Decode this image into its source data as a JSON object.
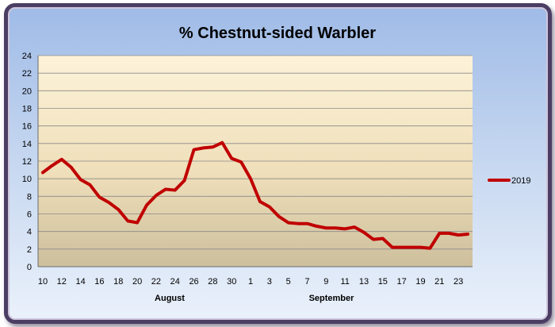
{
  "chart_data": {
    "type": "line",
    "title": "% Chestnut-sided Warbler",
    "xlabel": "",
    "ylabel": "",
    "ylim": [
      0,
      24
    ],
    "y_ticks": [
      "0",
      "2",
      "4",
      "6",
      "8",
      "10",
      "12",
      "14",
      "16",
      "18",
      "20",
      "22",
      "24"
    ],
    "x_tick_labels": [
      "10",
      "12",
      "14",
      "16",
      "18",
      "20",
      "22",
      "24",
      "26",
      "28",
      "30",
      "1",
      "3",
      "5",
      "7",
      "9",
      "11",
      "13",
      "15",
      "17",
      "19",
      "21",
      "23"
    ],
    "month_labels": [
      "August",
      "September"
    ],
    "grid": true,
    "legend_position": "right",
    "x": [
      "Aug 10",
      "Aug 11",
      "Aug 12",
      "Aug 13",
      "Aug 14",
      "Aug 15",
      "Aug 16",
      "Aug 17",
      "Aug 18",
      "Aug 19",
      "Aug 20",
      "Aug 21",
      "Aug 22",
      "Aug 23",
      "Aug 24",
      "Aug 25",
      "Aug 26",
      "Aug 27",
      "Aug 28",
      "Aug 29",
      "Aug 30",
      "Aug 31",
      "Sep 1",
      "Sep 2",
      "Sep 3",
      "Sep 4",
      "Sep 5",
      "Sep 6",
      "Sep 7",
      "Sep 8",
      "Sep 9",
      "Sep 10",
      "Sep 11",
      "Sep 12",
      "Sep 13",
      "Sep 14",
      "Sep 15",
      "Sep 16",
      "Sep 17",
      "Sep 18",
      "Sep 19",
      "Sep 20",
      "Sep 21",
      "Sep 22",
      "Sep 23",
      "Sep 24"
    ],
    "series": [
      {
        "name": "2019",
        "color": "#c00000",
        "values": [
          10.7,
          11.5,
          12.2,
          11.3,
          9.9,
          9.3,
          7.9,
          7.3,
          6.5,
          5.2,
          5.0,
          7.0,
          8.1,
          8.8,
          8.7,
          9.8,
          13.3,
          13.5,
          13.6,
          14.1,
          12.3,
          11.9,
          10.0,
          7.4,
          6.8,
          5.7,
          5.0,
          4.9,
          4.9,
          4.6,
          4.4,
          4.4,
          4.3,
          4.5,
          3.9,
          3.1,
          3.2,
          2.2,
          2.2,
          2.2,
          2.2,
          2.1,
          3.8,
          3.8,
          3.6,
          3.7
        ]
      }
    ]
  }
}
